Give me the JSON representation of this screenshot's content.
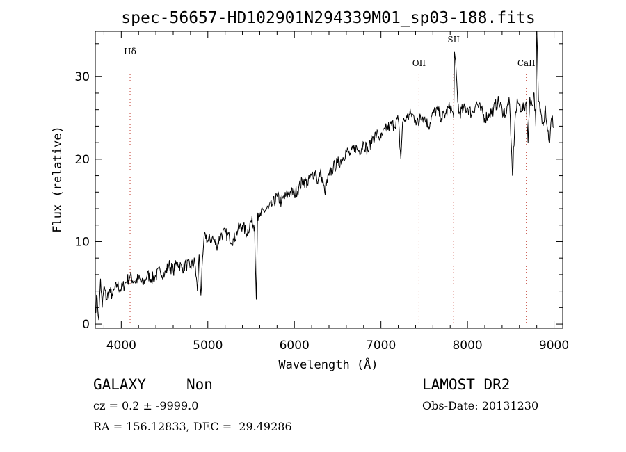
{
  "chart_data": {
    "type": "line",
    "title": "spec-56657-HD102901N294339M01_sp03-188.fits",
    "xlabel": "Wavelength (Å)",
    "ylabel": "Flux (relative)",
    "xlim": [
      3700,
      9100
    ],
    "ylim": [
      -0.5,
      35.5
    ],
    "x_ticks": [
      4000,
      5000,
      6000,
      7000,
      8000,
      9000
    ],
    "y_ticks": [
      0,
      10,
      20,
      30
    ],
    "grid": false,
    "line_color": "#000000",
    "marker_color": "#c0392b",
    "series": [
      {
        "x": [
          3700,
          3720,
          3740,
          3760,
          3780,
          3800,
          3830,
          3860,
          3900,
          3950,
          4000,
          4050,
          4100,
          4150,
          4200,
          4250,
          4300,
          4350,
          4400,
          4450,
          4500,
          4550,
          4600,
          4650,
          4700,
          4750,
          4800,
          4850,
          4880,
          4900,
          4920,
          4950,
          4970,
          5000,
          5050,
          5100,
          5150,
          5200,
          5250,
          5300,
          5350,
          5400,
          5450,
          5500,
          5540,
          5560,
          5575,
          5580,
          5600,
          5650,
          5700,
          5750,
          5800,
          5850,
          5900,
          5950,
          6000,
          6050,
          6100,
          6150,
          6200,
          6250,
          6270,
          6300,
          6350,
          6400,
          6450,
          6500,
          6550,
          6600,
          6650,
          6700,
          6750,
          6800,
          6850,
          6900,
          6950,
          7000,
          7050,
          7100,
          7150,
          7200,
          7230,
          7250,
          7300,
          7350,
          7400,
          7440,
          7450,
          7500,
          7550,
          7600,
          7650,
          7700,
          7750,
          7800,
          7840,
          7850,
          7900,
          7950,
          8000,
          8050,
          8100,
          8150,
          8200,
          8250,
          8300,
          8350,
          8400,
          8450,
          8480,
          8500,
          8520,
          8550,
          8580,
          8600,
          8650,
          8680,
          8700,
          8720,
          8750,
          8770,
          8790,
          8800,
          8820,
          8850,
          8880,
          8900,
          8920,
          8950,
          8970,
          9000
        ],
        "y": [
          1.5,
          3.5,
          0.5,
          5.5,
          2.0,
          4.5,
          3.0,
          4.0,
          3.5,
          4.8,
          4.2,
          5.0,
          5.8,
          5.2,
          5.5,
          4.8,
          6.0,
          5.5,
          5.8,
          6.5,
          6.0,
          7.2,
          6.5,
          7.5,
          6.8,
          7.2,
          7.0,
          7.5,
          4.0,
          8.5,
          3.5,
          9.5,
          11.0,
          10.0,
          10.5,
          9.5,
          10.8,
          11.0,
          10.5,
          10.2,
          11.5,
          12.0,
          11.0,
          12.5,
          12.0,
          3.0,
          13.5,
          12.5,
          13.0,
          13.8,
          14.0,
          14.5,
          15.5,
          14.8,
          15.5,
          16.0,
          15.8,
          16.5,
          17.5,
          17.0,
          18.0,
          18.5,
          17.0,
          18.5,
          16.0,
          18.0,
          19.0,
          19.5,
          20.0,
          21.0,
          20.5,
          21.5,
          21.0,
          22.0,
          21.0,
          22.5,
          23.0,
          22.5,
          23.5,
          24.0,
          24.2,
          24.8,
          20.0,
          24.5,
          25.0,
          25.5,
          24.8,
          24.2,
          25.5,
          25.0,
          24.0,
          25.5,
          26.0,
          25.0,
          25.5,
          26.5,
          25.0,
          33.0,
          25.5,
          26.0,
          26.2,
          25.5,
          26.8,
          26.0,
          25.0,
          25.5,
          26.0,
          27.0,
          26.0,
          25.5,
          27.5,
          23.0,
          18.0,
          25.0,
          27.0,
          26.5,
          26.0,
          27.0,
          22.0,
          27.5,
          26.5,
          28.0,
          24.0,
          36.0,
          27.0,
          25.5,
          24.5,
          26.5,
          24.0,
          22.0,
          25.0,
          24.0
        ]
      }
    ],
    "markers": [
      {
        "label": "Hδ",
        "x": 4102
      },
      {
        "label": "OII",
        "x": 7440
      },
      {
        "label": "SII",
        "x": 7840
      },
      {
        "label": "CaII",
        "x": 8680
      }
    ]
  },
  "info": {
    "object_class": "GALAXY",
    "subclass": "Non",
    "survey": "LAMOST DR2",
    "cz": "cz = 0.2 ± -9999.0",
    "obs_date": "Obs-Date: 20131230",
    "coords": "RA = 156.12833, DEC =  29.49286"
  }
}
